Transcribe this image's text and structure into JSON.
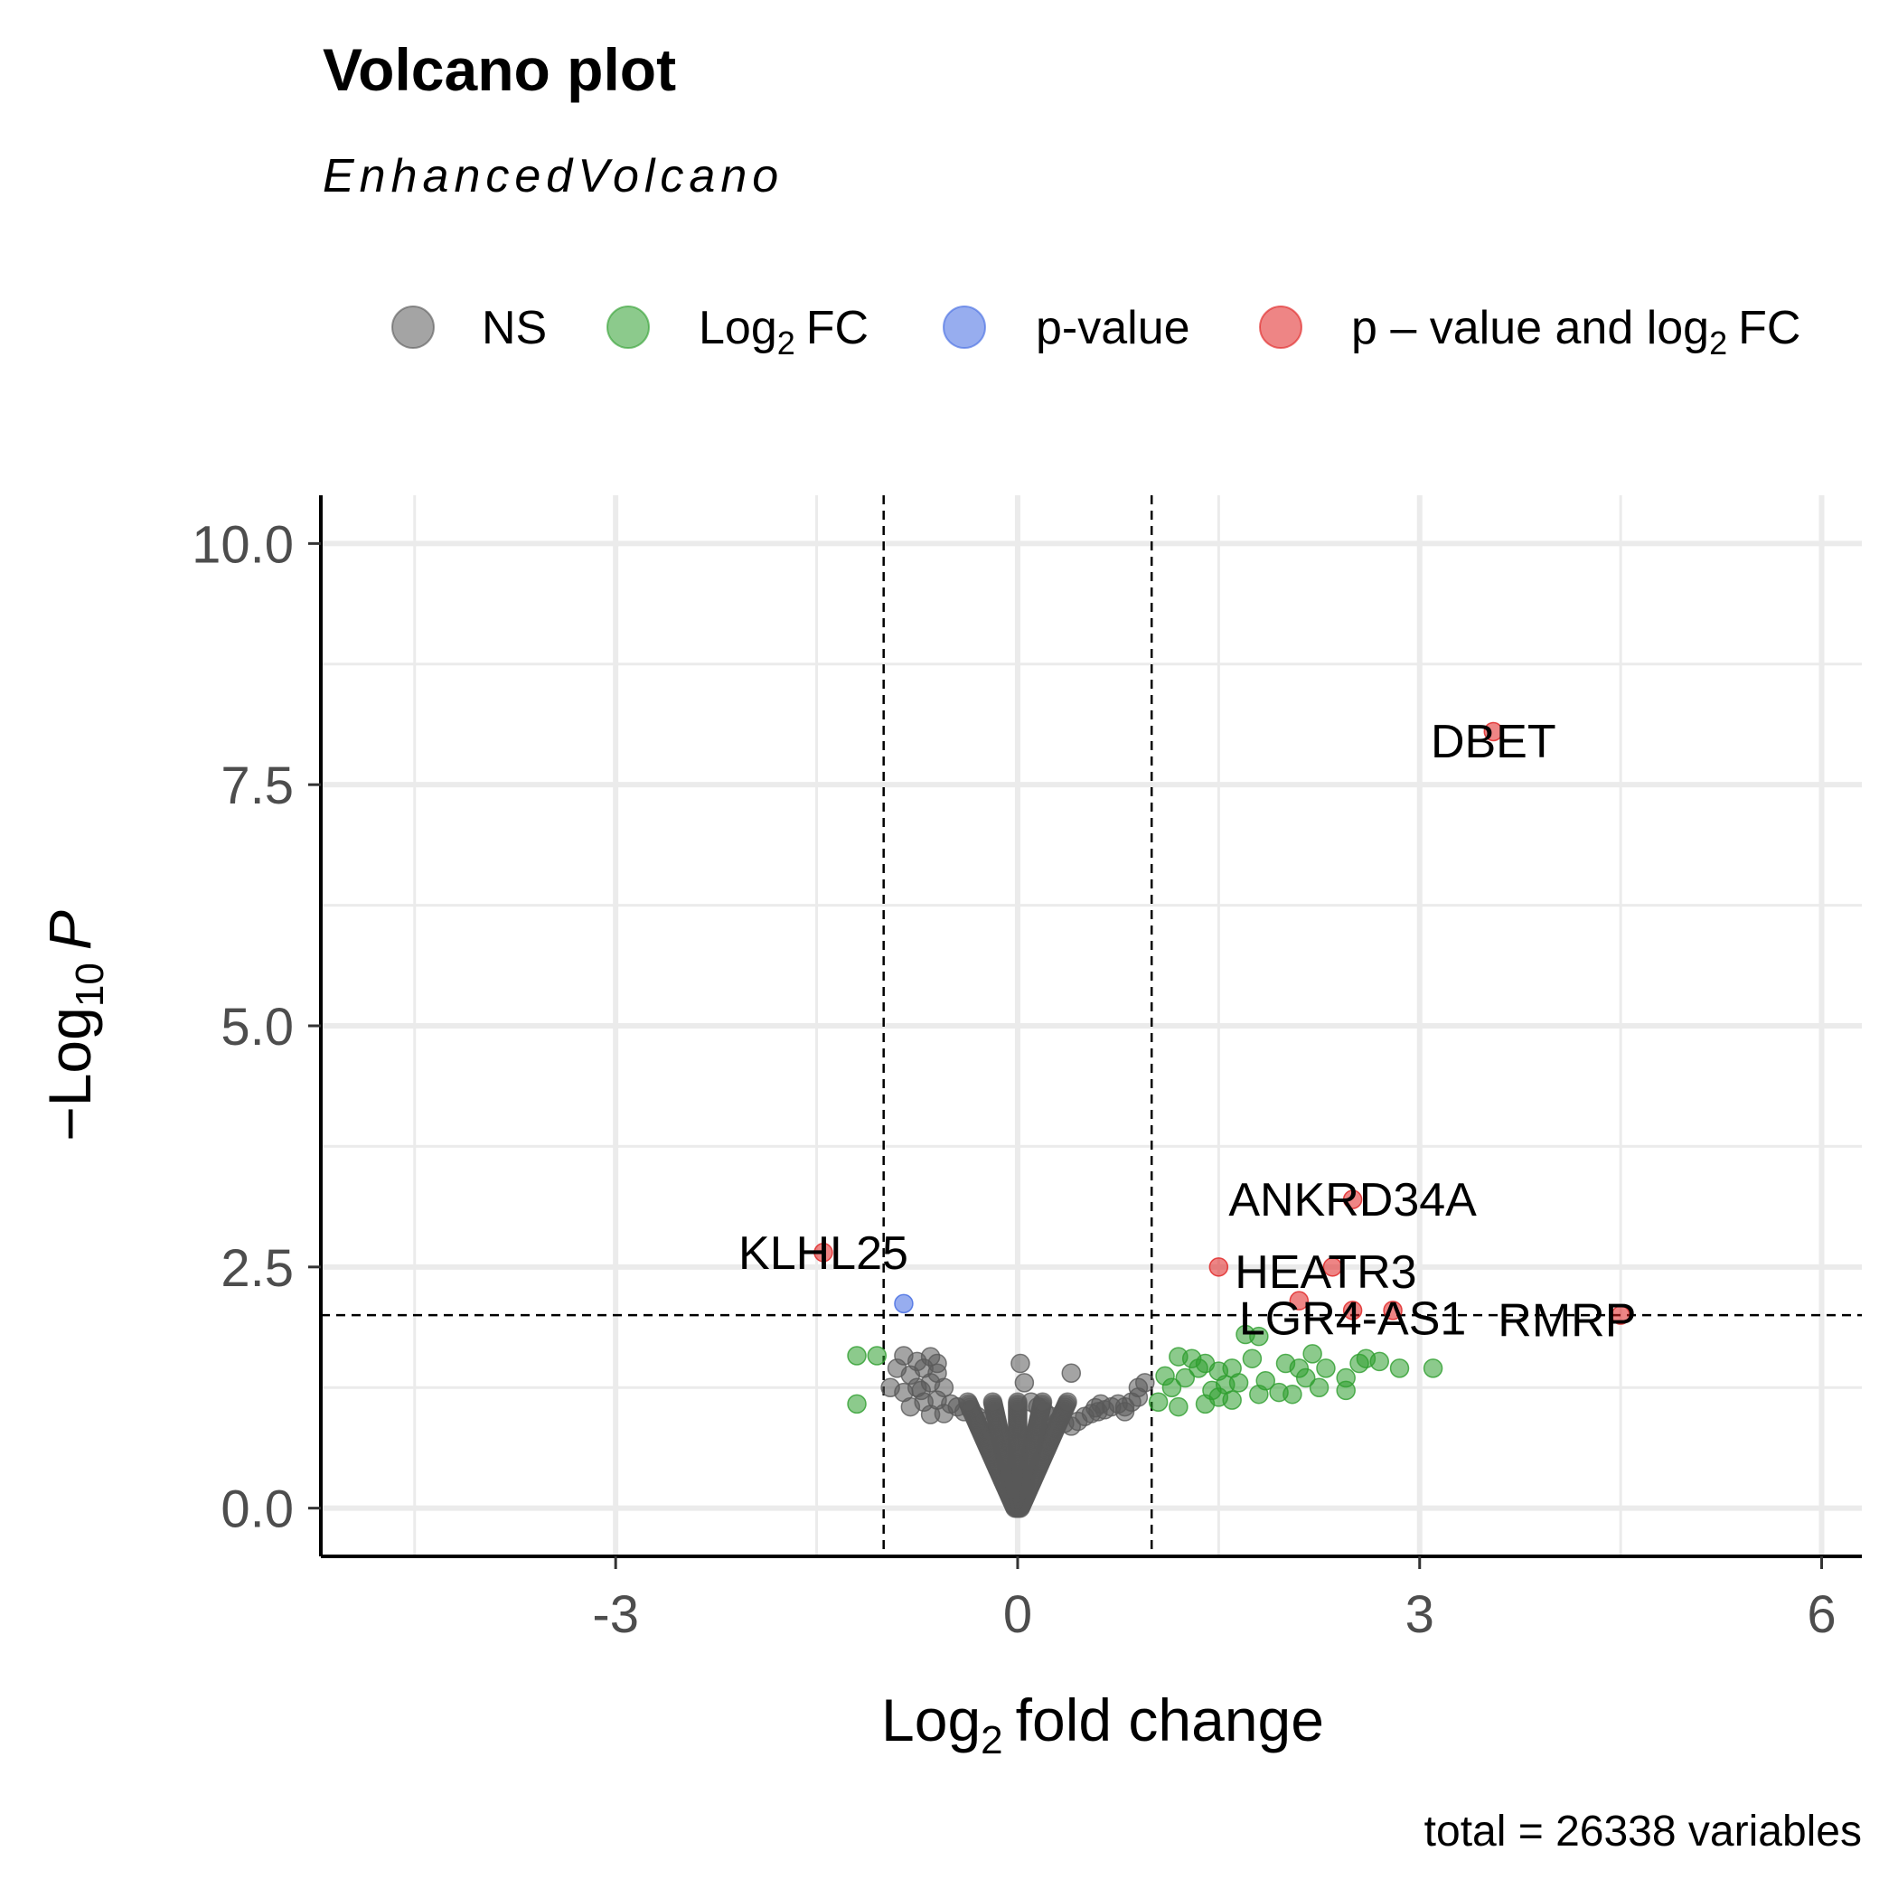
{
  "chart_data": {
    "type": "scatter",
    "title": "Volcano plot",
    "subtitle": "EnhancedVolcano",
    "caption": "total = 26338 variables",
    "xlabel": "fold change",
    "ylabel": "P",
    "xlim": [
      -5.2,
      6.3
    ],
    "ylim": [
      -0.5,
      10.5
    ],
    "x_ticks": [
      -3,
      0,
      3,
      6
    ],
    "y_ticks": [
      0.0,
      2.5,
      5.0,
      7.5,
      10.0
    ],
    "x_tick_labels": [
      "-3",
      "0",
      "3",
      "6"
    ],
    "y_tick_labels": [
      "0.0",
      "2.5",
      "5.0",
      "7.5",
      "10.0"
    ],
    "fc_cutoff": 1,
    "p_cutoff_log": 2,
    "grid": true,
    "legend": {
      "placement": "top",
      "items": [
        {
          "key": "ns",
          "label": "NS",
          "color": "#595959"
        },
        {
          "key": "fc",
          "label": "FC",
          "color": "#2e9e2e"
        },
        {
          "key": "p",
          "label": "p-value",
          "color": "#4169e1"
        },
        {
          "key": "both",
          "label": "value and log",
          "color": "#e02020"
        }
      ]
    },
    "series": [
      {
        "key": "both",
        "color": "#e02020",
        "points": [
          [
            3.55,
            8.05
          ],
          [
            2.5,
            3.2
          ],
          [
            1.5,
            2.5
          ],
          [
            2.35,
            2.5
          ],
          [
            2.1,
            2.15
          ],
          [
            2.5,
            2.05
          ],
          [
            2.8,
            2.05
          ],
          [
            4.5,
            2.0
          ],
          [
            -1.45,
            2.65
          ]
        ]
      },
      {
        "key": "p",
        "color": "#4169e1",
        "points": [
          [
            -0.85,
            2.12
          ]
        ]
      },
      {
        "key": "fc",
        "color": "#2e9e2e",
        "points": [
          [
            -1.2,
            1.58
          ],
          [
            -1.05,
            1.58
          ],
          [
            -1.2,
            1.08
          ],
          [
            1.2,
            1.57
          ],
          [
            1.3,
            1.55
          ],
          [
            1.4,
            1.5
          ],
          [
            1.5,
            1.42
          ],
          [
            1.6,
            1.45
          ],
          [
            1.7,
            1.8
          ],
          [
            1.8,
            1.78
          ],
          [
            1.75,
            1.55
          ],
          [
            2.0,
            1.5
          ],
          [
            2.1,
            1.45
          ],
          [
            2.2,
            1.6
          ],
          [
            2.3,
            1.45
          ],
          [
            2.45,
            1.35
          ],
          [
            2.55,
            1.5
          ],
          [
            2.7,
            1.52
          ],
          [
            2.85,
            1.45
          ],
          [
            3.1,
            1.45
          ],
          [
            1.1,
            1.37
          ],
          [
            1.25,
            1.35
          ],
          [
            1.45,
            1.22
          ],
          [
            1.55,
            1.28
          ],
          [
            1.65,
            1.3
          ],
          [
            1.85,
            1.32
          ],
          [
            1.95,
            1.2
          ],
          [
            2.15,
            1.35
          ],
          [
            2.25,
            1.25
          ],
          [
            2.45,
            1.22
          ],
          [
            1.05,
            1.1
          ],
          [
            1.2,
            1.05
          ],
          [
            1.4,
            1.08
          ],
          [
            1.6,
            1.12
          ],
          [
            1.8,
            1.18
          ],
          [
            2.05,
            1.18
          ],
          [
            1.15,
            1.25
          ],
          [
            1.5,
            1.15
          ],
          [
            1.35,
            1.45
          ],
          [
            2.6,
            1.55
          ]
        ]
      },
      {
        "key": "ns",
        "color": "#595959",
        "points": [
          [
            -0.85,
            1.58
          ],
          [
            -0.75,
            1.52
          ],
          [
            -0.65,
            1.57
          ],
          [
            -0.7,
            1.45
          ],
          [
            -0.6,
            1.4
          ],
          [
            -0.8,
            1.38
          ],
          [
            -0.9,
            1.45
          ],
          [
            -0.95,
            1.25
          ],
          [
            -0.85,
            1.2
          ],
          [
            -0.75,
            1.25
          ],
          [
            -0.65,
            1.3
          ],
          [
            -0.55,
            1.25
          ],
          [
            -0.8,
            1.05
          ],
          [
            -0.7,
            1.1
          ],
          [
            -0.6,
            1.12
          ],
          [
            -0.5,
            1.08
          ],
          [
            -0.45,
            1.05
          ],
          [
            -0.4,
            1.0
          ],
          [
            -0.35,
            1.02
          ],
          [
            -0.3,
            0.95
          ],
          [
            -0.55,
            0.98
          ],
          [
            -0.25,
            0.9
          ],
          [
            -0.65,
            0.97
          ],
          [
            -0.6,
            1.5
          ],
          [
            -0.72,
            1.22
          ],
          [
            0.02,
            1.5
          ],
          [
            0.05,
            1.3
          ],
          [
            0.1,
            1.1
          ],
          [
            0.15,
            1.05
          ],
          [
            0.2,
            1.0
          ],
          [
            0.25,
            0.95
          ],
          [
            0.3,
            0.9
          ],
          [
            0.35,
            0.88
          ],
          [
            0.4,
            0.85
          ],
          [
            0.45,
            0.9
          ],
          [
            0.5,
            0.95
          ],
          [
            0.55,
            0.98
          ],
          [
            0.6,
            1.0
          ],
          [
            0.65,
            1.02
          ],
          [
            0.7,
            1.05
          ],
          [
            0.75,
            1.08
          ],
          [
            0.8,
            1.05
          ],
          [
            0.85,
            1.1
          ],
          [
            0.9,
            1.15
          ],
          [
            0.95,
            1.3
          ],
          [
            0.4,
            1.4
          ],
          [
            0.9,
            1.25
          ],
          [
            0.8,
            1.0
          ],
          [
            0.62,
            1.08
          ],
          [
            0.58,
            1.04
          ]
        ]
      }
    ],
    "labels": [
      {
        "text": "DBET",
        "x": 3.55,
        "y": 7.95
      },
      {
        "text": "ANKRD34A",
        "x": 2.5,
        "y": 3.2
      },
      {
        "text": "KLHL25",
        "x": -1.45,
        "y": 2.65
      },
      {
        "text": "HEATR3",
        "x": 2.3,
        "y": 2.45
      },
      {
        "text": "LGR4-AS1",
        "x": 2.5,
        "y": 1.97
      },
      {
        "text": "RMRP",
        "x": 4.1,
        "y": 1.95
      }
    ]
  },
  "axis_text": {
    "x_prefix": "Log",
    "x_sub": "2",
    "y_prefix": "−Log",
    "y_sub": "10",
    "legend_fc_prefix": "Log",
    "legend_fc_sub": "2",
    "legend_both_prefix": "p – value and log",
    "legend_both_sub": "2",
    "legend_both_suffix": "FC"
  }
}
